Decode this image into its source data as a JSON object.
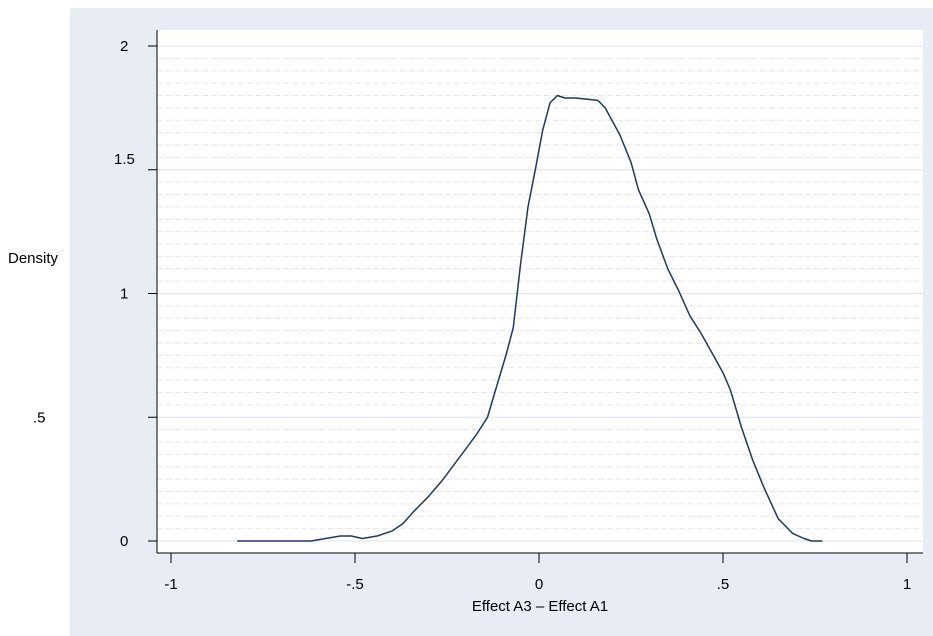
{
  "chart_data": {
    "type": "line",
    "title": "",
    "xlabel": "Effect A3 – Effect A1",
    "ylabel": "Density",
    "xlim": [
      -1,
      1
    ],
    "ylim": [
      0,
      2
    ],
    "x_ticks": [
      -1,
      -0.5,
      0,
      0.5,
      1
    ],
    "x_tick_labels": [
      "-1",
      "-.5",
      "0",
      ".5",
      "1"
    ],
    "y_ticks": [
      0,
      0.5,
      1,
      1.5,
      2
    ],
    "y_tick_labels": [
      "0",
      ".5",
      "1",
      "1.5",
      "2"
    ],
    "grid": true,
    "colors": {
      "outer_background": "#e8ecf5",
      "plot_background": "#ffffff",
      "grid_major": "#dde3ef",
      "grid_minor": "#e6e6ec",
      "line": "#1f3868"
    },
    "series": [
      {
        "x": [
          -0.82,
          -0.62,
          -0.58,
          -0.54,
          -0.51,
          -0.48,
          -0.44,
          -0.4,
          -0.37,
          -0.34,
          -0.3,
          -0.26,
          -0.22,
          -0.2,
          -0.17,
          -0.14,
          -0.12,
          -0.09,
          -0.07,
          -0.05,
          -0.03,
          -0.01,
          0.01,
          0.03,
          0.05,
          0.07,
          0.1,
          0.16,
          0.18,
          0.22,
          0.25,
          0.27,
          0.3,
          0.32,
          0.35,
          0.38,
          0.41,
          0.44,
          0.47,
          0.5,
          0.52,
          0.55,
          0.58,
          0.61,
          0.65,
          0.69,
          0.72,
          0.74,
          0.77
        ],
        "y": [
          0.0,
          0.0,
          0.01,
          0.02,
          0.02,
          0.01,
          0.02,
          0.04,
          0.07,
          0.12,
          0.18,
          0.25,
          0.33,
          0.37,
          0.43,
          0.5,
          0.6,
          0.75,
          0.86,
          1.12,
          1.35,
          1.5,
          1.66,
          1.77,
          1.8,
          1.79,
          1.79,
          1.78,
          1.75,
          1.64,
          1.53,
          1.42,
          1.32,
          1.22,
          1.1,
          1.01,
          0.91,
          0.84,
          0.76,
          0.68,
          0.61,
          0.46,
          0.33,
          0.22,
          0.09,
          0.03,
          0.01,
          0.0,
          0.0
        ]
      }
    ]
  }
}
